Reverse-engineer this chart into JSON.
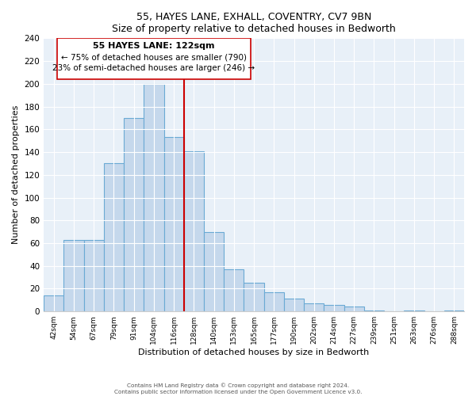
{
  "title1": "55, HAYES LANE, EXHALL, COVENTRY, CV7 9BN",
  "title2": "Size of property relative to detached houses in Bedworth",
  "xlabel": "Distribution of detached houses by size in Bedworth",
  "ylabel": "Number of detached properties",
  "bar_labels": [
    "42sqm",
    "54sqm",
    "67sqm",
    "79sqm",
    "91sqm",
    "104sqm",
    "116sqm",
    "128sqm",
    "140sqm",
    "153sqm",
    "165sqm",
    "177sqm",
    "190sqm",
    "202sqm",
    "214sqm",
    "227sqm",
    "239sqm",
    "251sqm",
    "263sqm",
    "276sqm",
    "288sqm"
  ],
  "bar_values": [
    14,
    63,
    63,
    130,
    170,
    200,
    153,
    141,
    70,
    37,
    25,
    17,
    11,
    7,
    6,
    4,
    1,
    0,
    1,
    0,
    1
  ],
  "bar_color": "#c5d8ec",
  "bar_edge_color": "#6aaad4",
  "ylim": [
    0,
    240
  ],
  "yticks": [
    0,
    20,
    40,
    60,
    80,
    100,
    120,
    140,
    160,
    180,
    200,
    220,
    240
  ],
  "vline_x": 6.5,
  "vline_color": "#cc0000",
  "annotation_title": "55 HAYES LANE: 122sqm",
  "annotation_line1": "← 75% of detached houses are smaller (790)",
  "annotation_line2": "23% of semi-detached houses are larger (246) →",
  "annotation_box_color": "#ffffff",
  "annotation_box_edge": "#cc0000",
  "footer1": "Contains HM Land Registry data © Crown copyright and database right 2024.",
  "footer2": "Contains public sector information licensed under the Open Government Licence v3.0.",
  "background_color": "#e8f0f8"
}
